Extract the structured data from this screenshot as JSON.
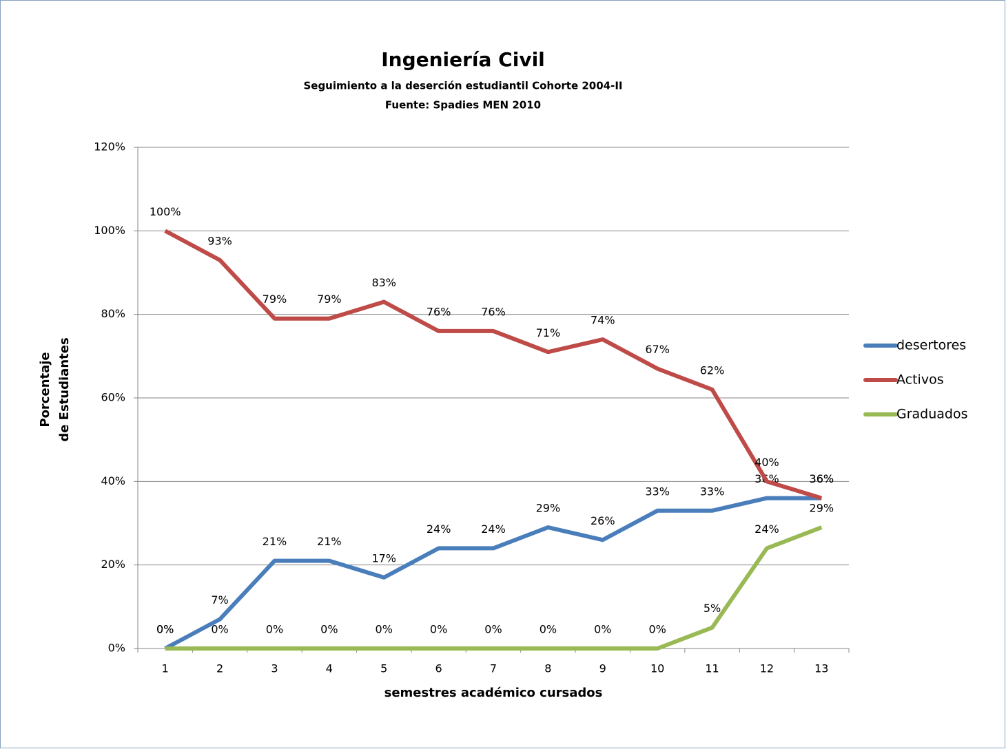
{
  "chart_data": {
    "type": "line",
    "title": "Ingeniería Civil",
    "subtitle": [
      "Seguimiento a la deserción estudiantil Cohorte 2004-II",
      "Fuente: Spadies MEN 2010"
    ],
    "x_label": "semestres  académico cursados",
    "y_label": [
      "Porcentaje",
      "de Estudiantes"
    ],
    "categories": [
      "1",
      "2",
      "3",
      "4",
      "5",
      "6",
      "7",
      "8",
      "9",
      "10",
      "11",
      "12",
      "13"
    ],
    "series": [
      {
        "name": "desertores",
        "color": "#4a7ebb",
        "values": [
          0,
          7,
          21,
          21,
          17,
          24,
          24,
          29,
          26,
          33,
          33,
          36,
          36
        ],
        "value_labels": [
          "0%",
          "7%",
          "21%",
          "21%",
          "17%",
          "24%",
          "24%",
          "29%",
          "26%",
          "33%",
          "33%",
          "36%",
          "36%"
        ]
      },
      {
        "name": "Activos",
        "color": "#be4b48",
        "values": [
          100,
          93,
          79,
          79,
          83,
          76,
          76,
          71,
          74,
          67,
          62,
          40,
          36
        ],
        "value_labels": [
          "100%",
          "93%",
          "79%",
          "79%",
          "83%",
          "76%",
          "76%",
          "71%",
          "74%",
          "67%",
          "62%",
          "40%",
          "36%"
        ]
      },
      {
        "name": "Graduados",
        "color": "#98b954",
        "values": [
          0,
          0,
          0,
          0,
          0,
          0,
          0,
          0,
          0,
          0,
          5,
          24,
          29
        ],
        "value_labels": [
          "0%",
          "0%",
          "0%",
          "0%",
          "0%",
          "0%",
          "0%",
          "0%",
          "0%",
          "0%",
          "5%",
          "24%",
          "29%"
        ]
      }
    ],
    "ylim": [
      0,
      120
    ],
    "yticks": [
      {
        "value": 0,
        "label": "0%"
      },
      {
        "value": 20,
        "label": "20%"
      },
      {
        "value": 40,
        "label": "40%"
      },
      {
        "value": 60,
        "label": "60%"
      },
      {
        "value": 80,
        "label": "80%"
      },
      {
        "value": 100,
        "label": "100%"
      },
      {
        "value": 120,
        "label": "120%"
      }
    ],
    "grid": true,
    "legend": "right"
  }
}
